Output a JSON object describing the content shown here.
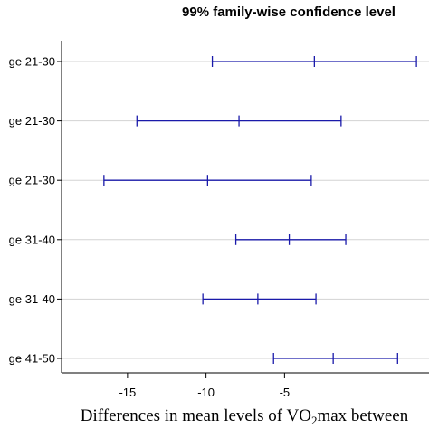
{
  "chart_data": {
    "type": "errorbar",
    "title": "99% family-wise confidence level",
    "xlabel": {
      "prefix": "Differences in mean levels of VO",
      "subscript": "2",
      "suffix": "max between"
    },
    "xlim": [
      -19.2,
      4.2
    ],
    "x_ticks": [
      -15,
      -10,
      -5
    ],
    "categories": [
      "ge 21-30",
      "ge 21-30",
      "ge 21-30",
      "ge 31-40",
      "ge 31-40",
      "ge 41-50"
    ],
    "series": [
      {
        "lower": -9.6,
        "estimate": -3.1,
        "upper": 3.4
      },
      {
        "lower": -14.4,
        "estimate": -7.9,
        "upper": -1.4
      },
      {
        "lower": -16.5,
        "estimate": -9.9,
        "upper": -3.3
      },
      {
        "lower": -8.1,
        "estimate": -4.7,
        "upper": -1.1
      },
      {
        "lower": -10.2,
        "estimate": -6.7,
        "upper": -3.0
      },
      {
        "lower": -5.7,
        "estimate": -1.9,
        "upper": 2.2
      }
    ],
    "colors": {
      "interval": "#1a1aaa",
      "gridline": "#d3d3d3",
      "axis": "#000000"
    }
  }
}
